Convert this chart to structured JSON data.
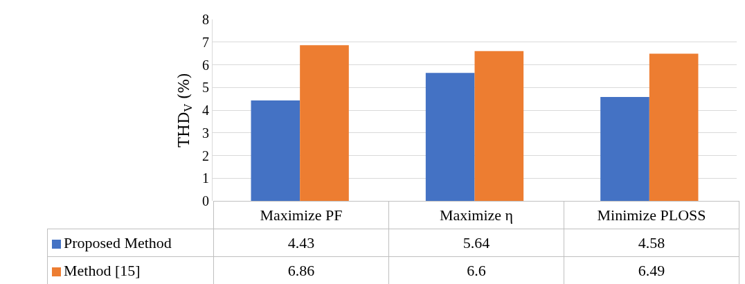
{
  "chart_data": {
    "type": "bar",
    "ylabel": "THD$_{V}$ (%)",
    "categories": [
      "Maximize PF",
      "Maximize η",
      "Minimize PLOSS"
    ],
    "series": [
      {
        "name": "Proposed Method",
        "color": "#4472c4",
        "values": [
          4.43,
          5.64,
          4.58
        ]
      },
      {
        "name": "Method [15]",
        "color": "#ed7d31",
        "values": [
          6.86,
          6.6,
          6.49
        ]
      }
    ],
    "ylim": [
      0,
      8
    ],
    "yticks": [
      0,
      1,
      2,
      3,
      4,
      5,
      6,
      7,
      8
    ],
    "grid": "y",
    "legend": "bottom",
    "data_labels": true
  }
}
